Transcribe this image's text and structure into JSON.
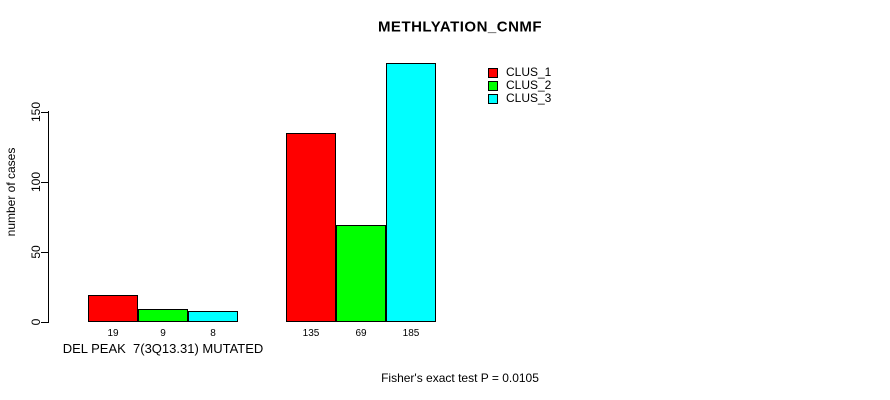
{
  "title": "METHLYATION_CNMF",
  "y_axis": {
    "label": "number of cases",
    "ticks": [
      "0",
      "50",
      "100",
      "150"
    ]
  },
  "legend": {
    "items": [
      {
        "label": "CLUS_1",
        "color": "#ff0000"
      },
      {
        "label": "CLUS_2",
        "color": "#00ff00"
      },
      {
        "label": "CLUS_3",
        "color": "#00ffff"
      }
    ]
  },
  "footer": "Fisher's exact test P = 0.0105",
  "chart_data": {
    "type": "bar",
    "title": "METHLYATION_CNMF",
    "xlabel": "",
    "ylabel": "number of cases",
    "ylim": [
      0,
      190
    ],
    "yticks": [
      0,
      50,
      100,
      150
    ],
    "categories": [
      "DEL PEAK  7(3Q13.31) MUTATED",
      ""
    ],
    "series": [
      {
        "name": "CLUS_1",
        "color": "#ff0000",
        "values": [
          19,
          135
        ]
      },
      {
        "name": "CLUS_2",
        "color": "#00ff00",
        "values": [
          9,
          69
        ]
      },
      {
        "name": "CLUS_3",
        "color": "#00ffff",
        "values": [
          8,
          185
        ]
      }
    ],
    "bar_value_labels": [
      [
        19,
        9,
        8
      ],
      [
        135,
        69,
        185
      ]
    ],
    "annotation": "Fisher's exact test P = 0.0105",
    "legend_position": "top-right",
    "grid": false
  }
}
